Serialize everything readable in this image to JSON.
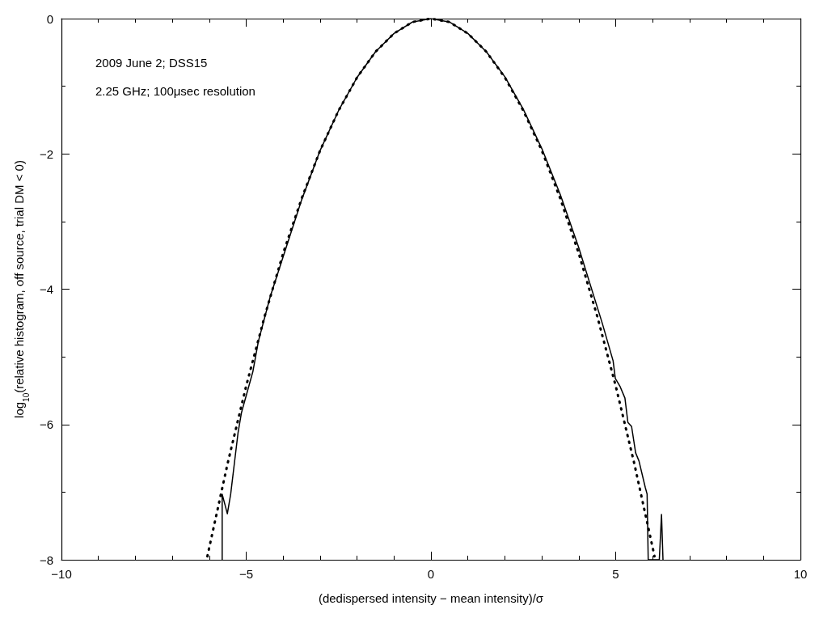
{
  "chart_data": {
    "type": "line",
    "xlabel": "(dedispersed intensity − mean intensity)/σ",
    "ylabel": "log$_{10}$(relative histogram, off source, trial DM < 0)",
    "annotations": [
      "2009 June 2; DSS15",
      "2.25 GHz; 100μsec resolution"
    ],
    "series": [
      {
        "color": "#000000",
        "line_style": "solid",
        "x": [
          -5.65,
          -5.65,
          -5.51,
          -5.42,
          -5.22,
          -5.13,
          -4.82,
          -4.67,
          -4.35,
          -3.91,
          -3.5,
          -3,
          -2.5,
          -2,
          -1.5,
          -1,
          -0.5,
          0,
          0.5,
          1,
          1.5,
          2,
          2.5,
          3,
          3.5,
          3.99,
          4.64,
          4.93,
          4.99,
          5.12,
          5.25,
          5.33,
          5.43,
          5.54,
          5.63,
          5.8,
          5.85,
          5.88,
          6.18,
          6.24,
          6.28
        ],
        "values": [
          -8,
          -7.03,
          -7.32,
          -7.03,
          -6.12,
          -5.83,
          -5.22,
          -4.77,
          -4.11,
          -3.37,
          -2.68,
          -1.95,
          -1.36,
          -0.87,
          -0.49,
          -0.22,
          -0.05,
          0,
          -0.05,
          -0.22,
          -0.49,
          -0.86,
          -1.34,
          -1.92,
          -2.6,
          -3.37,
          -4.51,
          -5.06,
          -5.32,
          -5.44,
          -5.61,
          -5.97,
          -6.03,
          -6.42,
          -6.54,
          -6.93,
          -7.03,
          -8,
          -8,
          -7.33,
          -8
        ]
      },
      {
        "color": "#000000",
        "line_style": "dotted",
        "x": [
          -6.05,
          -6,
          -5.5,
          -5,
          -4.5,
          -4,
          -3.5,
          -3,
          -2.5,
          -2,
          -1.5,
          -1,
          -0.5,
          0,
          0.5,
          1,
          1.5,
          2,
          2.5,
          3,
          3.5,
          4,
          4.5,
          5,
          5.5,
          6,
          6.05
        ],
        "values": [
          -7.95,
          -7.82,
          -6.57,
          -5.43,
          -4.4,
          -3.47,
          -2.66,
          -1.95,
          -1.36,
          -0.87,
          -0.49,
          -0.22,
          -0.05,
          0,
          -0.05,
          -0.22,
          -0.49,
          -0.87,
          -1.36,
          -1.95,
          -2.66,
          -3.47,
          -4.4,
          -5.43,
          -6.57,
          -7.82,
          -7.95
        ]
      }
    ],
    "xlim": [
      -10,
      10
    ],
    "xticks": [
      {
        "value": -10,
        "label": "−10"
      },
      {
        "value": -5,
        "label": "−5"
      },
      0,
      5,
      10
    ],
    "ylim": [
      -8,
      0
    ],
    "yticks": [
      {
        "value": -8,
        "label": "−8"
      },
      {
        "value": -6,
        "label": "−6"
      },
      {
        "value": -4,
        "label": "−4"
      },
      {
        "value": -2,
        "label": "−2"
      },
      0
    ],
    "grid": false,
    "marker": "none"
  }
}
